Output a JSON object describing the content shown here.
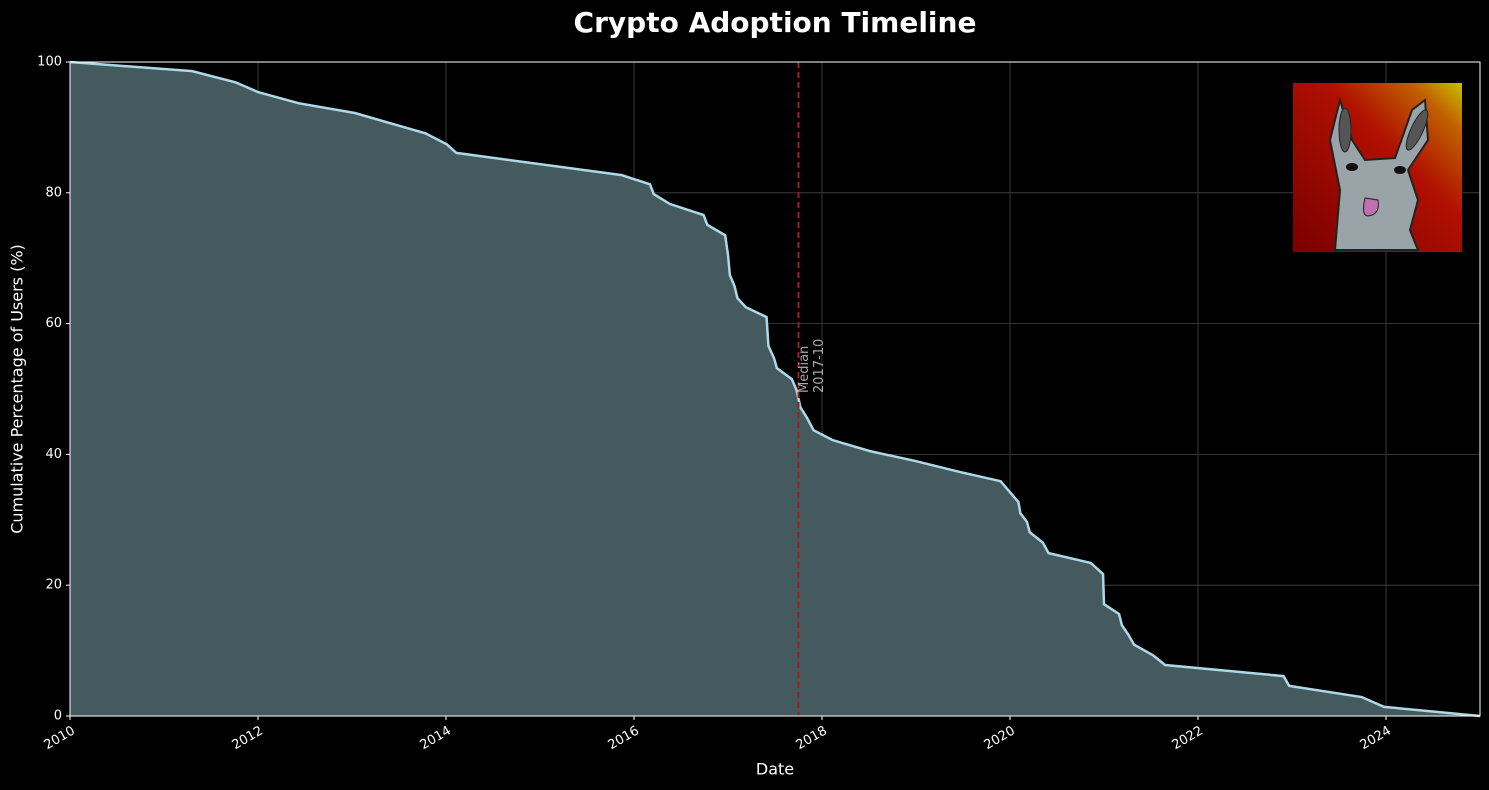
{
  "chart_data": {
    "type": "area",
    "title": "Crypto Adoption Timeline",
    "x_label": "Date",
    "y_label": "Cumulative Percentage of Users (%)",
    "x": [
      2010,
      2011.3,
      2011.76,
      2012,
      2012.43,
      2013.03,
      2013.78,
      2014.01,
      2014.11,
      2015.87,
      2016.17,
      2016.21,
      2016.38,
      2016.74,
      2016.78,
      2016.97,
      2017.0,
      2017.02,
      2017.07,
      2017.1,
      2017.19,
      2017.41,
      2017.43,
      2017.49,
      2017.52,
      2017.68,
      2017.73,
      2017.77,
      2017.84,
      2017.91,
      2018.11,
      2018.51,
      2018.99,
      2019.47,
      2019.9,
      2020.09,
      2020.11,
      2020.18,
      2020.21,
      2020.35,
      2020.41,
      2020.86,
      2020.99,
      2021.0,
      2021.16,
      2021.19,
      2021.26,
      2021.32,
      2021.52,
      2021.65,
      2022.91,
      2022.97,
      2023.74,
      2023.98,
      2025
    ],
    "values": [
      100,
      98.6,
      96.9,
      95.4,
      93.7,
      92.2,
      89.1,
      87.4,
      86.1,
      82.7,
      81.3,
      79.8,
      78.3,
      76.6,
      75.1,
      73.5,
      70.5,
      67.4,
      65.7,
      63.9,
      62.5,
      61.0,
      56.6,
      54.7,
      53.2,
      51.5,
      49.8,
      47.2,
      45.6,
      43.7,
      42.2,
      40.5,
      39.0,
      37.3,
      35.9,
      32.7,
      31.0,
      29.7,
      28.1,
      26.5,
      24.9,
      23.4,
      21.7,
      17.1,
      15.6,
      13.9,
      12.4,
      10.9,
      9.3,
      7.8,
      6.1,
      4.6,
      2.9,
      1.4,
      0
    ],
    "color": "#add8e6",
    "fill_color": "#455a5f",
    "xlim": [
      2010,
      2025
    ],
    "xticks": [
      2010,
      2012,
      2014,
      2016,
      2018,
      2020,
      2022,
      2024
    ],
    "ylim": [
      0,
      100
    ],
    "yticks": [
      0,
      20,
      40,
      60,
      80,
      100
    ],
    "grid": true,
    "median": {
      "x": 2017.75,
      "lines": [
        "Median",
        "2017-10"
      ],
      "color": "#a01c1c"
    }
  }
}
